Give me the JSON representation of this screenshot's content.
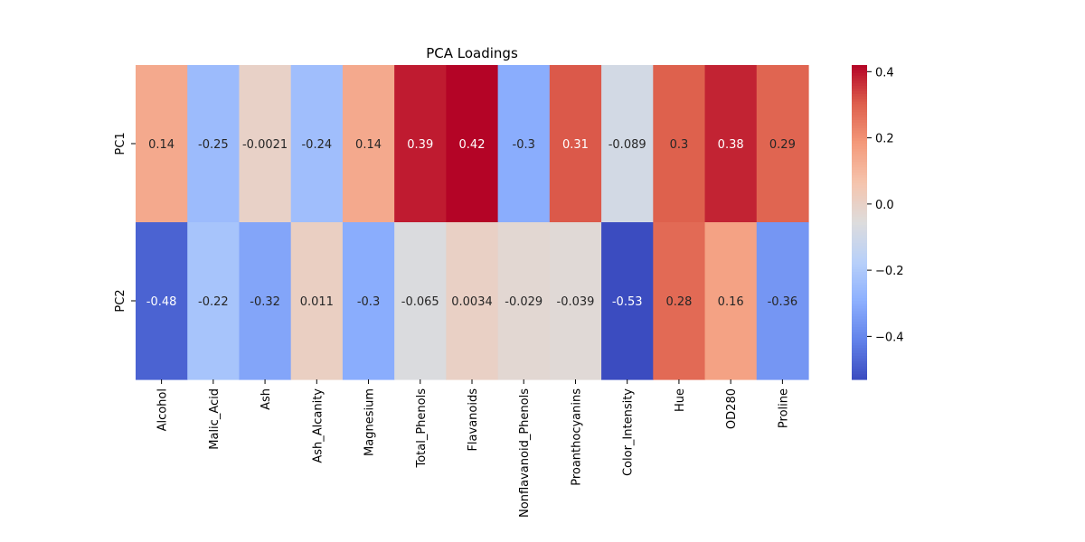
{
  "chart_data": {
    "type": "heatmap",
    "title": "PCA Loadings",
    "xlabel": "",
    "ylabel": "",
    "columns": [
      "Alcohol",
      "Malic_Acid",
      "Ash",
      "Ash_Alcanity",
      "Magnesium",
      "Total_Phenols",
      "Flavanoids",
      "Nonflavanoid_Phenols",
      "Proanthocyanins",
      "Color_Intensity",
      "Hue",
      "OD280",
      "Proline"
    ],
    "rows": [
      "PC1",
      "PC2"
    ],
    "values": [
      [
        0.14,
        -0.25,
        -0.0021,
        -0.24,
        0.14,
        0.39,
        0.42,
        -0.3,
        0.31,
        -0.089,
        0.3,
        0.38,
        0.29
      ],
      [
        -0.48,
        -0.22,
        -0.32,
        0.011,
        -0.3,
        -0.065,
        0.0034,
        -0.029,
        -0.039,
        -0.53,
        0.28,
        0.16,
        -0.36
      ]
    ],
    "cell_labels": [
      [
        "0.14",
        "-0.25",
        "-0.0021",
        "-0.24",
        "0.14",
        "0.39",
        "0.42",
        "-0.3",
        "0.31",
        "-0.089",
        "0.3",
        "0.38",
        "0.29"
      ],
      [
        "-0.48",
        "-0.22",
        "-0.32",
        "0.011",
        "-0.3",
        "-0.065",
        "0.0034",
        "-0.029",
        "-0.039",
        "-0.53",
        "0.28",
        "0.16",
        "-0.36"
      ]
    ],
    "colormap": "coolwarm",
    "vmin": -0.53,
    "vmax": 0.42,
    "colorbar_ticks": [
      0.4,
      0.2,
      0.0,
      -0.2,
      -0.4
    ],
    "colorbar_tick_labels": [
      "0.4",
      "0.2",
      "0.0",
      "−0.2",
      "−0.4"
    ],
    "annotation_colors": {
      "dark": "#262626",
      "light": "#ffffff"
    }
  }
}
